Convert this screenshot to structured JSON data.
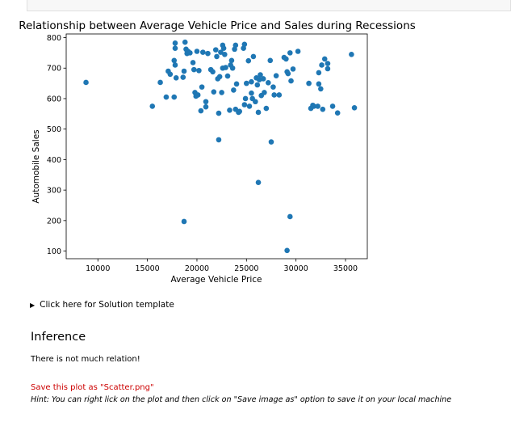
{
  "chart_data": {
    "type": "scatter",
    "title": "Relationship between Average Vehicle Price and Sales during Recessions",
    "xlabel": "Average Vehicle Price",
    "ylabel": "Automobile Sales",
    "xlim": [
      6800,
      37200
    ],
    "ylim": [
      75,
      812
    ],
    "xticks": [
      10000,
      15000,
      20000,
      25000,
      30000,
      35000
    ],
    "yticks": [
      100,
      200,
      300,
      400,
      500,
      600,
      700,
      800
    ],
    "grid": false,
    "marker_color": "#1f77b4",
    "points": [
      [
        8800,
        653
      ],
      [
        15500,
        575
      ],
      [
        16300,
        653
      ],
      [
        16900,
        605
      ],
      [
        17100,
        690
      ],
      [
        17300,
        680
      ],
      [
        17700,
        605
      ],
      [
        17700,
        725
      ],
      [
        17800,
        710
      ],
      [
        17800,
        782
      ],
      [
        17800,
        765
      ],
      [
        17900,
        668
      ],
      [
        18600,
        670
      ],
      [
        18700,
        690
      ],
      [
        18800,
        785
      ],
      [
        18900,
        762
      ],
      [
        19000,
        748
      ],
      [
        19100,
        755
      ],
      [
        19300,
        750
      ],
      [
        19600,
        718
      ],
      [
        19700,
        695
      ],
      [
        19800,
        620
      ],
      [
        19900,
        608
      ],
      [
        20000,
        755
      ],
      [
        20100,
        612
      ],
      [
        20200,
        692
      ],
      [
        20400,
        560
      ],
      [
        20500,
        638
      ],
      [
        20600,
        752
      ],
      [
        20900,
        573
      ],
      [
        20900,
        590
      ],
      [
        21100,
        748
      ],
      [
        21400,
        695
      ],
      [
        21600,
        688
      ],
      [
        21700,
        622
      ],
      [
        21900,
        760
      ],
      [
        22000,
        738
      ],
      [
        22100,
        665
      ],
      [
        22200,
        552
      ],
      [
        22300,
        672
      ],
      [
        22400,
        752
      ],
      [
        22500,
        620
      ],
      [
        22600,
        700
      ],
      [
        22600,
        775
      ],
      [
        22700,
        765
      ],
      [
        22800,
        745
      ],
      [
        22900,
        702
      ],
      [
        23100,
        674
      ],
      [
        23300,
        562
      ],
      [
        23400,
        710
      ],
      [
        23500,
        725
      ],
      [
        23600,
        700
      ],
      [
        23700,
        628
      ],
      [
        23800,
        762
      ],
      [
        23900,
        775
      ],
      [
        23900,
        565
      ],
      [
        24000,
        648
      ],
      [
        24200,
        555
      ],
      [
        24300,
        558
      ],
      [
        24700,
        765
      ],
      [
        24800,
        778
      ],
      [
        24800,
        580
      ],
      [
        24900,
        600
      ],
      [
        25000,
        650
      ],
      [
        25200,
        724
      ],
      [
        25300,
        575
      ],
      [
        25500,
        655
      ],
      [
        25500,
        618
      ],
      [
        25600,
        600
      ],
      [
        25700,
        738
      ],
      [
        25900,
        590
      ],
      [
        26000,
        668
      ],
      [
        26100,
        645
      ],
      [
        26200,
        555
      ],
      [
        26300,
        662
      ],
      [
        26400,
        678
      ],
      [
        26500,
        610
      ],
      [
        26700,
        665
      ],
      [
        26800,
        620
      ],
      [
        27000,
        568
      ],
      [
        27200,
        652
      ],
      [
        27400,
        725
      ],
      [
        27700,
        638
      ],
      [
        27800,
        612
      ],
      [
        28000,
        675
      ],
      [
        28300,
        612
      ],
      [
        28800,
        735
      ],
      [
        29000,
        730
      ],
      [
        29100,
        688
      ],
      [
        29200,
        682
      ],
      [
        29400,
        750
      ],
      [
        29500,
        658
      ],
      [
        29700,
        697
      ],
      [
        30200,
        755
      ],
      [
        31300,
        650
      ],
      [
        31500,
        568
      ],
      [
        31700,
        578
      ],
      [
        31800,
        575
      ],
      [
        32200,
        575
      ],
      [
        32300,
        648
      ],
      [
        32300,
        685
      ],
      [
        32500,
        632
      ],
      [
        32600,
        710
      ],
      [
        32700,
        565
      ],
      [
        32900,
        730
      ],
      [
        33200,
        715
      ],
      [
        33200,
        698
      ],
      [
        33700,
        575
      ],
      [
        34200,
        553
      ],
      [
        35600,
        745
      ],
      [
        35900,
        570
      ],
      [
        22200,
        465
      ],
      [
        27500,
        458
      ],
      [
        26200,
        325
      ],
      [
        29400,
        213
      ],
      [
        18700,
        197
      ],
      [
        29100,
        102
      ]
    ]
  },
  "solution_toggle": {
    "arrow": "▶",
    "label": "Click here for Solution template"
  },
  "inference": {
    "heading": "Inference",
    "text": "There is not much relation!"
  },
  "save_note": "Save this plot as \"Scatter.png\"",
  "hint": "Hint: You can right lick on the plot and then click on \"Save image as\" option to save it on your local machine"
}
